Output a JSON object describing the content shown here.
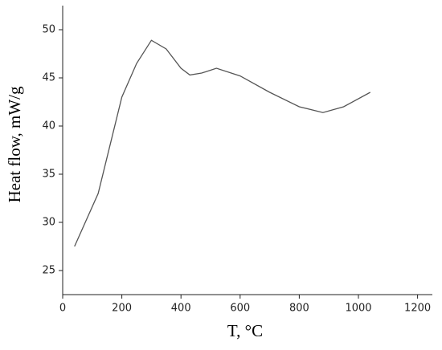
{
  "chart_data": {
    "type": "line",
    "x_label": "T, °C",
    "y_label": "Heat flow, mW/g",
    "x": [
      40,
      120,
      200,
      250,
      300,
      350,
      400,
      430,
      470,
      520,
      600,
      700,
      800,
      880,
      950,
      1040
    ],
    "series": [
      {
        "color": "#555555",
        "values": [
          27.5,
          33,
          43,
          46.5,
          48.9,
          48,
          46,
          45.3,
          45.5,
          46,
          45.2,
          43.5,
          42,
          41.4,
          42,
          43.5
        ]
      }
    ],
    "xlim": [
      0,
      1250
    ],
    "xticks": [
      0,
      200,
      400,
      600,
      800,
      1000,
      1200
    ],
    "ylim": [
      22.5,
      52.5
    ],
    "yticks": [
      25,
      30,
      35,
      40,
      45,
      50
    ]
  }
}
